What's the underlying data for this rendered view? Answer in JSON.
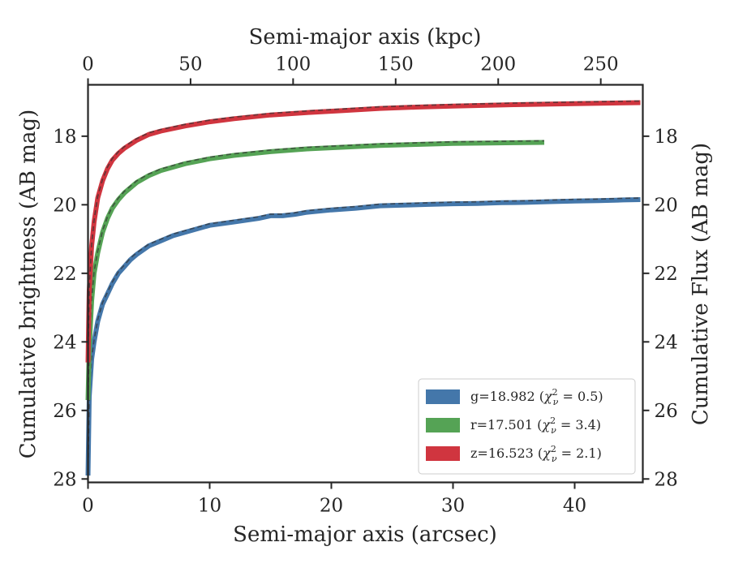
{
  "chart_data": {
    "type": "line",
    "xlabel": "Semi-major axis (arcsec)",
    "x2label": "Semi-major axis (kpc)",
    "ylabel": "Cumulative brightness (AB mag)",
    "y2label": "Cumulative Flux (AB mag)",
    "xlim": [
      0,
      45.6
    ],
    "x2lim": [
      0,
      270.5
    ],
    "ylim": [
      28.1,
      16.5
    ],
    "y_inverted": true,
    "xticks": [
      0,
      10,
      20,
      30,
      40
    ],
    "x2ticks": [
      0,
      50,
      100,
      150,
      200,
      250
    ],
    "yticks": [
      18,
      20,
      22,
      24,
      26,
      28
    ],
    "grid": false,
    "legend_position": "lower-right",
    "series": [
      {
        "name": "g=18.982 (χ²ᵥ = 0.5)",
        "legend_plain": "g=18.982 (",
        "legend_chi": "2.0",
        "legend_value": "0.5",
        "color": "#4477aa",
        "x": [
          0.0,
          0.1,
          0.3,
          0.5,
          0.8,
          1.2,
          1.6,
          2.0,
          2.5,
          3.0,
          3.5,
          4.0,
          5.0,
          6.0,
          7.0,
          8.0,
          10.0,
          12.0,
          14.0,
          15.0,
          16.0,
          17.0,
          18.0,
          20.0,
          22.0,
          24.0,
          26.0,
          28.0,
          30.0,
          32.0,
          34.0,
          36.0,
          38.0,
          40.0,
          42.0,
          44.0,
          45.4
        ],
        "y": [
          27.9,
          25.6,
          24.5,
          24.0,
          23.4,
          22.9,
          22.6,
          22.3,
          22.0,
          21.8,
          21.6,
          21.45,
          21.2,
          21.05,
          20.9,
          20.8,
          20.6,
          20.5,
          20.4,
          20.32,
          20.32,
          20.28,
          20.22,
          20.15,
          20.1,
          20.03,
          20.01,
          19.99,
          19.97,
          19.96,
          19.94,
          19.93,
          19.91,
          19.89,
          19.88,
          19.86,
          19.85
        ]
      },
      {
        "name": "r=17.501 (χ²ᵥ = 3.4)",
        "legend_plain": "r=17.501 (",
        "legend_chi": "2.0",
        "legend_value": "3.4",
        "color": "#55a355",
        "x": [
          0.0,
          0.1,
          0.3,
          0.5,
          0.8,
          1.2,
          1.6,
          2.0,
          2.5,
          3.0,
          4.0,
          5.0,
          6.0,
          8.0,
          10.0,
          12.0,
          15.0,
          18.0,
          21.0,
          24.0,
          27.0,
          30.0,
          33.0,
          35.0,
          37.5
        ],
        "y": [
          25.7,
          24.2,
          22.8,
          22.0,
          21.4,
          20.8,
          20.4,
          20.1,
          19.85,
          19.65,
          19.35,
          19.15,
          19.0,
          18.8,
          18.66,
          18.56,
          18.45,
          18.37,
          18.32,
          18.27,
          18.24,
          18.21,
          18.2,
          18.19,
          18.18
        ]
      },
      {
        "name": "z=16.523 (χ²ᵥ = 2.1)",
        "legend_plain": "z=16.523 (",
        "legend_chi": "2.0",
        "legend_value": "2.1",
        "color": "#d0353f",
        "x": [
          0.0,
          0.1,
          0.3,
          0.5,
          0.8,
          1.2,
          1.6,
          2.0,
          2.5,
          3.0,
          4.0,
          5.0,
          6.0,
          8.0,
          10.0,
          12.0,
          15.0,
          18.0,
          21.0,
          24.0,
          27.0,
          30.0,
          35.0,
          40.0,
          45.4
        ],
        "y": [
          24.6,
          22.5,
          21.2,
          20.5,
          19.8,
          19.3,
          18.95,
          18.7,
          18.5,
          18.35,
          18.12,
          17.95,
          17.85,
          17.7,
          17.58,
          17.49,
          17.38,
          17.31,
          17.25,
          17.19,
          17.15,
          17.12,
          17.08,
          17.05,
          17.02
        ]
      }
    ]
  }
}
